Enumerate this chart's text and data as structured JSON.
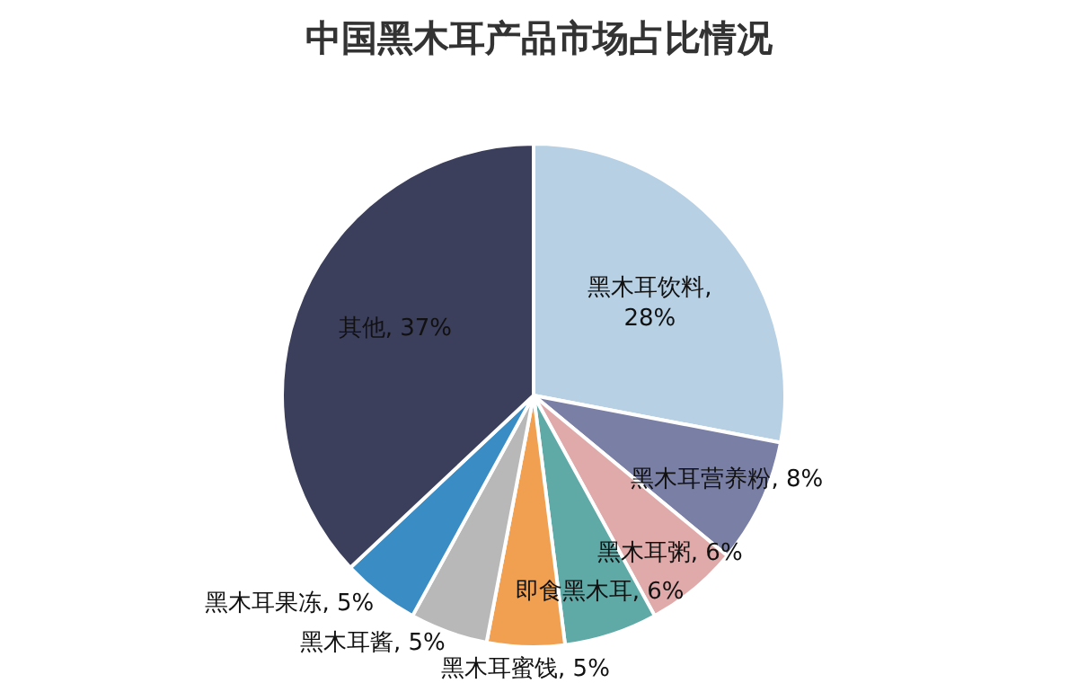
{
  "chart_data": {
    "type": "pie",
    "title": "中国黑木耳产品市场占比情况",
    "categories": [
      "黑木耳饮料",
      "黑木耳营养粉",
      "黑木耳粥",
      "即食黑木耳",
      "黑木耳蜜饯",
      "黑木耳酱",
      "黑木耳果冻",
      "其他"
    ],
    "values": [
      28,
      8,
      6,
      6,
      5,
      5,
      5,
      37
    ],
    "colors": [
      "#b7d0e3",
      "#7a7fa6",
      "#e0aaaa",
      "#5fa9a6",
      "#f0a050",
      "#b8b8b8",
      "#3a8cc4",
      "#3b3f5c"
    ],
    "value_labels": [
      ", 28%",
      ", 8%",
      ", 6%",
      ", 6%",
      ", 5%",
      ", 5%",
      ", 5%",
      ", 37%"
    ],
    "legend": false
  }
}
